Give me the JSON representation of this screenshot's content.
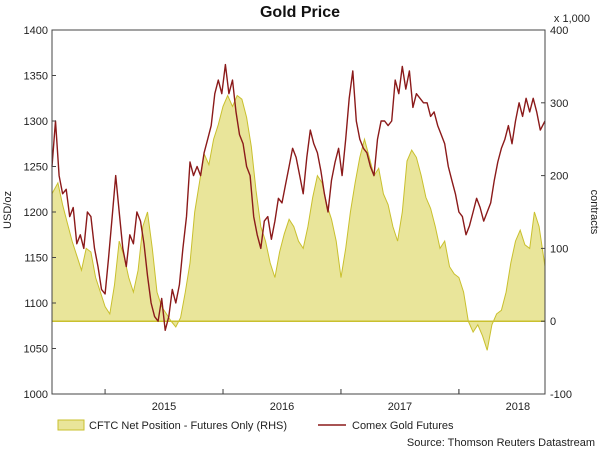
{
  "chart_data": {
    "type": "line",
    "title": "Gold Price",
    "ylabel_left": "USD/oz",
    "ylabel_right": "contracts",
    "right_unit_note": "x 1,000",
    "x_ticks": [
      "2015",
      "2016",
      "2017",
      "2018"
    ],
    "y_left": {
      "min": 1000,
      "max": 1400,
      "ticks": [
        "1000",
        "1050",
        "1100",
        "1150",
        "1200",
        "1250",
        "1300",
        "1350",
        "1400"
      ]
    },
    "y_right": {
      "min": -100,
      "max": 400,
      "ticks": [
        "-100",
        "0",
        "100",
        "200",
        "300",
        "400"
      ]
    },
    "x_range": [
      2014.55,
      2018.73
    ],
    "grid": false,
    "legend_position": "bottom",
    "source": "Source: Thomson Reuters Datastream",
    "series": [
      {
        "name": "CFTC Net Position - Futures Only (RHS)",
        "kind": "area",
        "axis": "right",
        "color": "#c9c02e",
        "fill": "#e9e59a",
        "points": [
          [
            2014.55,
            175
          ],
          [
            2014.6,
            190
          ],
          [
            2014.64,
            160
          ],
          [
            2014.68,
            135
          ],
          [
            2014.72,
            110
          ],
          [
            2014.76,
            90
          ],
          [
            2014.8,
            70
          ],
          [
            2014.84,
            100
          ],
          [
            2014.88,
            95
          ],
          [
            2014.92,
            60
          ],
          [
            2014.96,
            40
          ],
          [
            2015.0,
            20
          ],
          [
            2015.04,
            10
          ],
          [
            2015.08,
            50
          ],
          [
            2015.12,
            110
          ],
          [
            2015.16,
            90
          ],
          [
            2015.2,
            60
          ],
          [
            2015.24,
            40
          ],
          [
            2015.28,
            70
          ],
          [
            2015.32,
            130
          ],
          [
            2015.36,
            150
          ],
          [
            2015.4,
            100
          ],
          [
            2015.44,
            40
          ],
          [
            2015.48,
            20
          ],
          [
            2015.52,
            10
          ],
          [
            2015.56,
            0
          ],
          [
            2015.6,
            -8
          ],
          [
            2015.64,
            5
          ],
          [
            2015.68,
            40
          ],
          [
            2015.72,
            80
          ],
          [
            2015.76,
            150
          ],
          [
            2015.8,
            190
          ],
          [
            2015.84,
            230
          ],
          [
            2015.88,
            215
          ],
          [
            2015.92,
            250
          ],
          [
            2015.96,
            270
          ],
          [
            2016.0,
            295
          ],
          [
            2016.04,
            310
          ],
          [
            2016.08,
            295
          ],
          [
            2016.12,
            310
          ],
          [
            2016.16,
            305
          ],
          [
            2016.2,
            280
          ],
          [
            2016.24,
            240
          ],
          [
            2016.28,
            180
          ],
          [
            2016.32,
            130
          ],
          [
            2016.36,
            110
          ],
          [
            2016.4,
            80
          ],
          [
            2016.44,
            60
          ],
          [
            2016.48,
            95
          ],
          [
            2016.52,
            120
          ],
          [
            2016.56,
            140
          ],
          [
            2016.6,
            130
          ],
          [
            2016.64,
            110
          ],
          [
            2016.68,
            100
          ],
          [
            2016.72,
            130
          ],
          [
            2016.76,
            170
          ],
          [
            2016.8,
            200
          ],
          [
            2016.84,
            190
          ],
          [
            2016.88,
            160
          ],
          [
            2016.92,
            140
          ],
          [
            2016.96,
            110
          ],
          [
            2017.0,
            60
          ],
          [
            2017.04,
            100
          ],
          [
            2017.08,
            150
          ],
          [
            2017.12,
            190
          ],
          [
            2017.16,
            225
          ],
          [
            2017.2,
            250
          ],
          [
            2017.24,
            225
          ],
          [
            2017.28,
            200
          ],
          [
            2017.32,
            210
          ],
          [
            2017.36,
            175
          ],
          [
            2017.4,
            160
          ],
          [
            2017.44,
            130
          ],
          [
            2017.48,
            110
          ],
          [
            2017.52,
            150
          ],
          [
            2017.56,
            220
          ],
          [
            2017.6,
            235
          ],
          [
            2017.64,
            225
          ],
          [
            2017.68,
            200
          ],
          [
            2017.72,
            170
          ],
          [
            2017.76,
            155
          ],
          [
            2017.8,
            130
          ],
          [
            2017.84,
            100
          ],
          [
            2017.88,
            110
          ],
          [
            2017.92,
            75
          ],
          [
            2017.96,
            65
          ],
          [
            2018.0,
            60
          ],
          [
            2018.04,
            40
          ],
          [
            2018.08,
            0
          ],
          [
            2018.12,
            -15
          ],
          [
            2018.16,
            -5
          ],
          [
            2018.2,
            -20
          ],
          [
            2018.24,
            -40
          ],
          [
            2018.28,
            -5
          ],
          [
            2018.32,
            10
          ],
          [
            2018.36,
            15
          ],
          [
            2018.4,
            40
          ],
          [
            2018.44,
            80
          ],
          [
            2018.48,
            110
          ],
          [
            2018.52,
            125
          ],
          [
            2018.56,
            105
          ],
          [
            2018.6,
            100
          ],
          [
            2018.64,
            150
          ],
          [
            2018.68,
            130
          ],
          [
            2018.73,
            75
          ]
        ]
      },
      {
        "name": "Comex Gold Futures",
        "kind": "line",
        "axis": "left",
        "color": "#8b1a1a",
        "points": [
          [
            2014.55,
            1250
          ],
          [
            2014.58,
            1300
          ],
          [
            2014.61,
            1240
          ],
          [
            2014.64,
            1220
          ],
          [
            2014.67,
            1225
          ],
          [
            2014.7,
            1195
          ],
          [
            2014.73,
            1205
          ],
          [
            2014.76,
            1165
          ],
          [
            2014.79,
            1175
          ],
          [
            2014.82,
            1160
          ],
          [
            2014.85,
            1200
          ],
          [
            2014.88,
            1195
          ],
          [
            2014.91,
            1160
          ],
          [
            2014.94,
            1140
          ],
          [
            2014.97,
            1115
          ],
          [
            2015.0,
            1110
          ],
          [
            2015.03,
            1150
          ],
          [
            2015.06,
            1195
          ],
          [
            2015.09,
            1240
          ],
          [
            2015.12,
            1200
          ],
          [
            2015.15,
            1160
          ],
          [
            2015.18,
            1140
          ],
          [
            2015.21,
            1175
          ],
          [
            2015.24,
            1165
          ],
          [
            2015.27,
            1200
          ],
          [
            2015.3,
            1190
          ],
          [
            2015.33,
            1165
          ],
          [
            2015.36,
            1130
          ],
          [
            2015.39,
            1100
          ],
          [
            2015.42,
            1085
          ],
          [
            2015.45,
            1080
          ],
          [
            2015.48,
            1105
          ],
          [
            2015.51,
            1070
          ],
          [
            2015.54,
            1085
          ],
          [
            2015.57,
            1115
          ],
          [
            2015.6,
            1100
          ],
          [
            2015.63,
            1120
          ],
          [
            2015.66,
            1160
          ],
          [
            2015.69,
            1195
          ],
          [
            2015.72,
            1255
          ],
          [
            2015.75,
            1240
          ],
          [
            2015.78,
            1250
          ],
          [
            2015.81,
            1240
          ],
          [
            2015.84,
            1265
          ],
          [
            2015.87,
            1280
          ],
          [
            2015.9,
            1295
          ],
          [
            2015.93,
            1330
          ],
          [
            2015.96,
            1345
          ],
          [
            2015.99,
            1330
          ],
          [
            2016.02,
            1362
          ],
          [
            2016.05,
            1330
          ],
          [
            2016.08,
            1345
          ],
          [
            2016.11,
            1310
          ],
          [
            2016.14,
            1285
          ],
          [
            2016.17,
            1275
          ],
          [
            2016.2,
            1250
          ],
          [
            2016.23,
            1240
          ],
          [
            2016.26,
            1195
          ],
          [
            2016.29,
            1175
          ],
          [
            2016.32,
            1160
          ],
          [
            2016.35,
            1190
          ],
          [
            2016.38,
            1195
          ],
          [
            2016.41,
            1170
          ],
          [
            2016.44,
            1190
          ],
          [
            2016.47,
            1215
          ],
          [
            2016.5,
            1210
          ],
          [
            2016.53,
            1230
          ],
          [
            2016.56,
            1250
          ],
          [
            2016.59,
            1270
          ],
          [
            2016.62,
            1260
          ],
          [
            2016.65,
            1240
          ],
          [
            2016.68,
            1220
          ],
          [
            2016.71,
            1260
          ],
          [
            2016.74,
            1290
          ],
          [
            2016.77,
            1275
          ],
          [
            2016.8,
            1265
          ],
          [
            2016.83,
            1245
          ],
          [
            2016.86,
            1220
          ],
          [
            2016.89,
            1200
          ],
          [
            2016.92,
            1235
          ],
          [
            2016.95,
            1255
          ],
          [
            2016.98,
            1270
          ],
          [
            2017.01,
            1240
          ],
          [
            2017.04,
            1280
          ],
          [
            2017.07,
            1325
          ],
          [
            2017.1,
            1355
          ],
          [
            2017.13,
            1300
          ],
          [
            2017.16,
            1280
          ],
          [
            2017.19,
            1270
          ],
          [
            2017.22,
            1265
          ],
          [
            2017.25,
            1250
          ],
          [
            2017.28,
            1240
          ],
          [
            2017.31,
            1280
          ],
          [
            2017.34,
            1300
          ],
          [
            2017.37,
            1300
          ],
          [
            2017.4,
            1295
          ],
          [
            2017.43,
            1300
          ],
          [
            2017.46,
            1345
          ],
          [
            2017.49,
            1330
          ],
          [
            2017.52,
            1360
          ],
          [
            2017.55,
            1335
          ],
          [
            2017.58,
            1355
          ],
          [
            2017.61,
            1315
          ],
          [
            2017.64,
            1330
          ],
          [
            2017.67,
            1325
          ],
          [
            2017.7,
            1320
          ],
          [
            2017.73,
            1320
          ],
          [
            2017.76,
            1305
          ],
          [
            2017.79,
            1310
          ],
          [
            2017.82,
            1295
          ],
          [
            2017.85,
            1285
          ],
          [
            2017.88,
            1275
          ],
          [
            2017.91,
            1250
          ],
          [
            2017.94,
            1235
          ],
          [
            2017.97,
            1220
          ],
          [
            2018.0,
            1200
          ],
          [
            2018.03,
            1195
          ],
          [
            2018.06,
            1175
          ],
          [
            2018.09,
            1185
          ],
          [
            2018.12,
            1200
          ],
          [
            2018.15,
            1215
          ],
          [
            2018.18,
            1205
          ],
          [
            2018.21,
            1190
          ],
          [
            2018.24,
            1200
          ],
          [
            2018.27,
            1210
          ],
          [
            2018.3,
            1235
          ],
          [
            2018.33,
            1255
          ],
          [
            2018.36,
            1270
          ],
          [
            2018.39,
            1280
          ],
          [
            2018.42,
            1295
          ],
          [
            2018.45,
            1275
          ],
          [
            2018.48,
            1300
          ],
          [
            2018.51,
            1320
          ],
          [
            2018.54,
            1305
          ],
          [
            2018.57,
            1325
          ],
          [
            2018.6,
            1310
          ],
          [
            2018.63,
            1325
          ],
          [
            2018.66,
            1310
          ],
          [
            2018.69,
            1290
          ],
          [
            2018.73,
            1300
          ]
        ]
      }
    ]
  }
}
